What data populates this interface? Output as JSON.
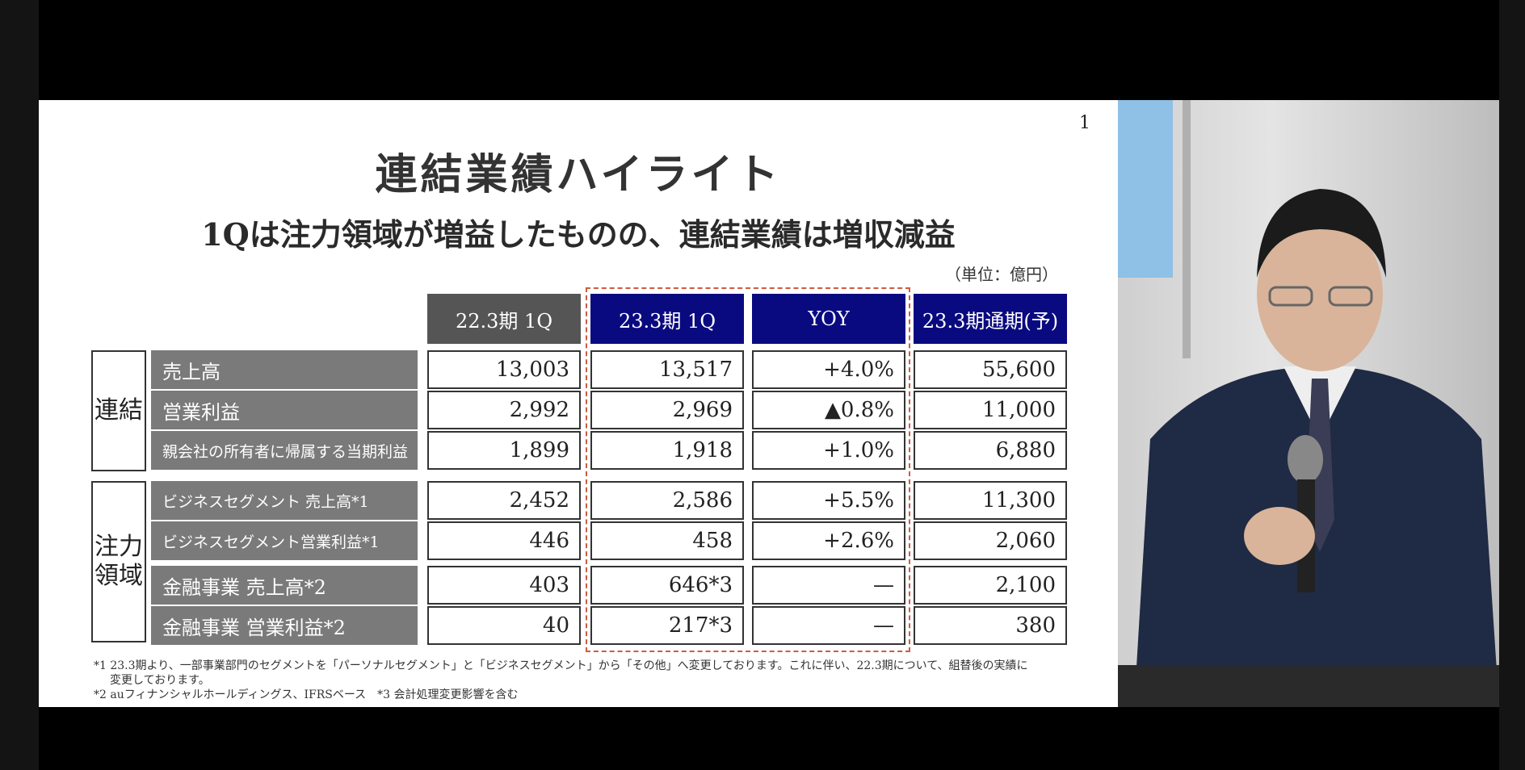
{
  "slide": {
    "page_number": "1",
    "title": "連結業績ハイライト",
    "subtitle": "1Qは注力領域が増益したものの、連結業績は増収減益",
    "unit": "（単位：億円）",
    "headers": [
      "22.3期 1Q",
      "23.3期 1Q",
      "YOY",
      "23.3期通期(予)"
    ],
    "groups": [
      {
        "name": "連結",
        "rows": [
          {
            "label": "売上高",
            "values": [
              "13,003",
              "13,517",
              "+4.0%",
              "55,600"
            ]
          },
          {
            "label": "営業利益",
            "values": [
              "2,992",
              "2,969",
              "▲0.8%",
              "11,000"
            ]
          },
          {
            "label": "親会社の所有者に帰属する当期利益",
            "values": [
              "1,899",
              "1,918",
              "+1.0%",
              "6,880"
            ]
          }
        ]
      },
      {
        "name": "注力\n領域",
        "rows": [
          {
            "label": "ビジネスセグメント 売上高*1",
            "values": [
              "2,452",
              "2,586",
              "+5.5%",
              "11,300"
            ]
          },
          {
            "label": "ビジネスセグメント営業利益*1",
            "values": [
              "446",
              "458",
              "+2.6%",
              "2,060"
            ]
          },
          {
            "label": "金融事業 売上高*2",
            "values": [
              "403",
              "646*3",
              "—",
              "2,100"
            ]
          },
          {
            "label": "金融事業 営業利益*2",
            "values": [
              "40",
              "217*3",
              "—",
              "380"
            ]
          }
        ]
      }
    ],
    "footnotes": [
      "*1 23.3期より、一部事業部門のセグメントを「パーソナルセグメント」と「ビジネスセグメント」から「その他」へ変更しております。これに伴い、22.3期について、組替後の実績に",
      "変更しております。",
      "*2 auフィナンシャルホールディングス、IFRSベース　*3 会計処理変更影響を含む"
    ]
  }
}
